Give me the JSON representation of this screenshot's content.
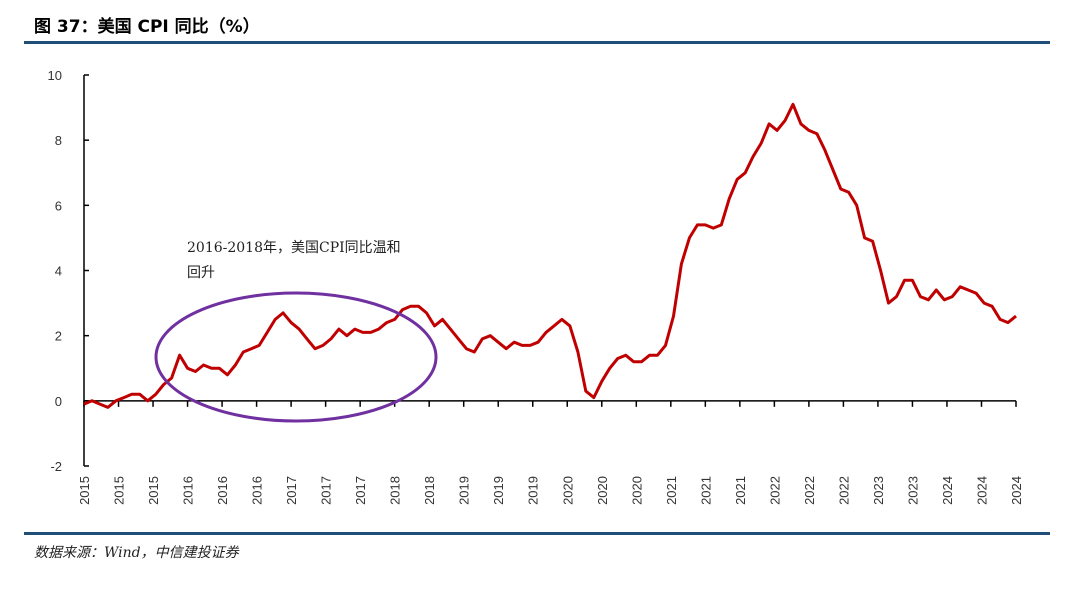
{
  "title": "图 37：美国 CPI 同比（%）",
  "source": "数据来源：Wind，中信建投证券",
  "colors": {
    "line": "#c00000",
    "ellipse": "#7030a0",
    "rule": "#1f4e79",
    "axis": "#000000"
  },
  "chart_data": {
    "type": "line",
    "title": "美国 CPI 同比（%）",
    "xlabel": "",
    "ylabel": "%",
    "ylim": [
      -2,
      10
    ],
    "yticks": [
      "-2",
      "0",
      "2",
      "4",
      "6",
      "8",
      "10"
    ],
    "xtick_labels": [
      "2015",
      "2015",
      "2015",
      "2016",
      "2016",
      "2016",
      "2017",
      "2017",
      "2017",
      "2018",
      "2018",
      "2019",
      "2019",
      "2019",
      "2020",
      "2020",
      "2020",
      "2021",
      "2021",
      "2021",
      "2022",
      "2022",
      "2022",
      "2023",
      "2023",
      "2024",
      "2024",
      "2024"
    ],
    "annotation": {
      "line1": "2016-2018年，美国CPI同比温和",
      "line2": "回升"
    },
    "series": [
      {
        "name": "美国CPI同比",
        "start": "2015-01",
        "frequency": "monthly",
        "values": [
          -0.1,
          0.0,
          -0.1,
          -0.2,
          0.0,
          0.1,
          0.2,
          0.2,
          0.0,
          0.2,
          0.5,
          0.7,
          1.4,
          1.0,
          0.9,
          1.1,
          1.0,
          1.0,
          0.8,
          1.1,
          1.5,
          1.6,
          1.7,
          2.1,
          2.5,
          2.7,
          2.4,
          2.2,
          1.9,
          1.6,
          1.7,
          1.9,
          2.2,
          2.0,
          2.2,
          2.1,
          2.1,
          2.2,
          2.4,
          2.5,
          2.8,
          2.9,
          2.9,
          2.7,
          2.3,
          2.5,
          2.2,
          1.9,
          1.6,
          1.5,
          1.9,
          2.0,
          1.8,
          1.6,
          1.8,
          1.7,
          1.7,
          1.8,
          2.1,
          2.3,
          2.5,
          2.3,
          1.5,
          0.3,
          0.1,
          0.6,
          1.0,
          1.3,
          1.4,
          1.2,
          1.2,
          1.4,
          1.4,
          1.7,
          2.6,
          4.2,
          5.0,
          5.4,
          5.4,
          5.3,
          5.4,
          6.2,
          6.8,
          7.0,
          7.5,
          7.9,
          8.5,
          8.3,
          8.6,
          9.1,
          8.5,
          8.3,
          8.2,
          7.7,
          7.1,
          6.5,
          6.4,
          6.0,
          5.0,
          4.9,
          4.0,
          3.0,
          3.2,
          3.7,
          3.7,
          3.2,
          3.1,
          3.4,
          3.1,
          3.2,
          3.5,
          3.4,
          3.3,
          3.0,
          2.9,
          2.5,
          2.4,
          2.6
        ]
      }
    ]
  }
}
